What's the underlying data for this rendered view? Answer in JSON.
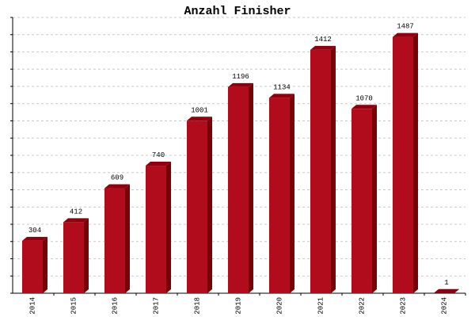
{
  "chart_data": {
    "type": "bar",
    "title": "Anzahl Finisher",
    "categories": [
      "2014",
      "2015",
      "2016",
      "2017",
      "2018",
      "2019",
      "2020",
      "2021",
      "2022",
      "2023",
      "2024"
    ],
    "values": [
      304,
      412,
      609,
      740,
      1001,
      1196,
      1134,
      1412,
      1070,
      1487,
      1
    ],
    "color": "#b00c1c",
    "ylim": [
      0,
      1600
    ],
    "yticks": [
      0,
      100,
      200,
      300,
      400,
      500,
      600,
      700,
      800,
      900,
      1000,
      1100,
      1200,
      1300,
      1400,
      1500,
      1600
    ],
    "grid": true
  }
}
